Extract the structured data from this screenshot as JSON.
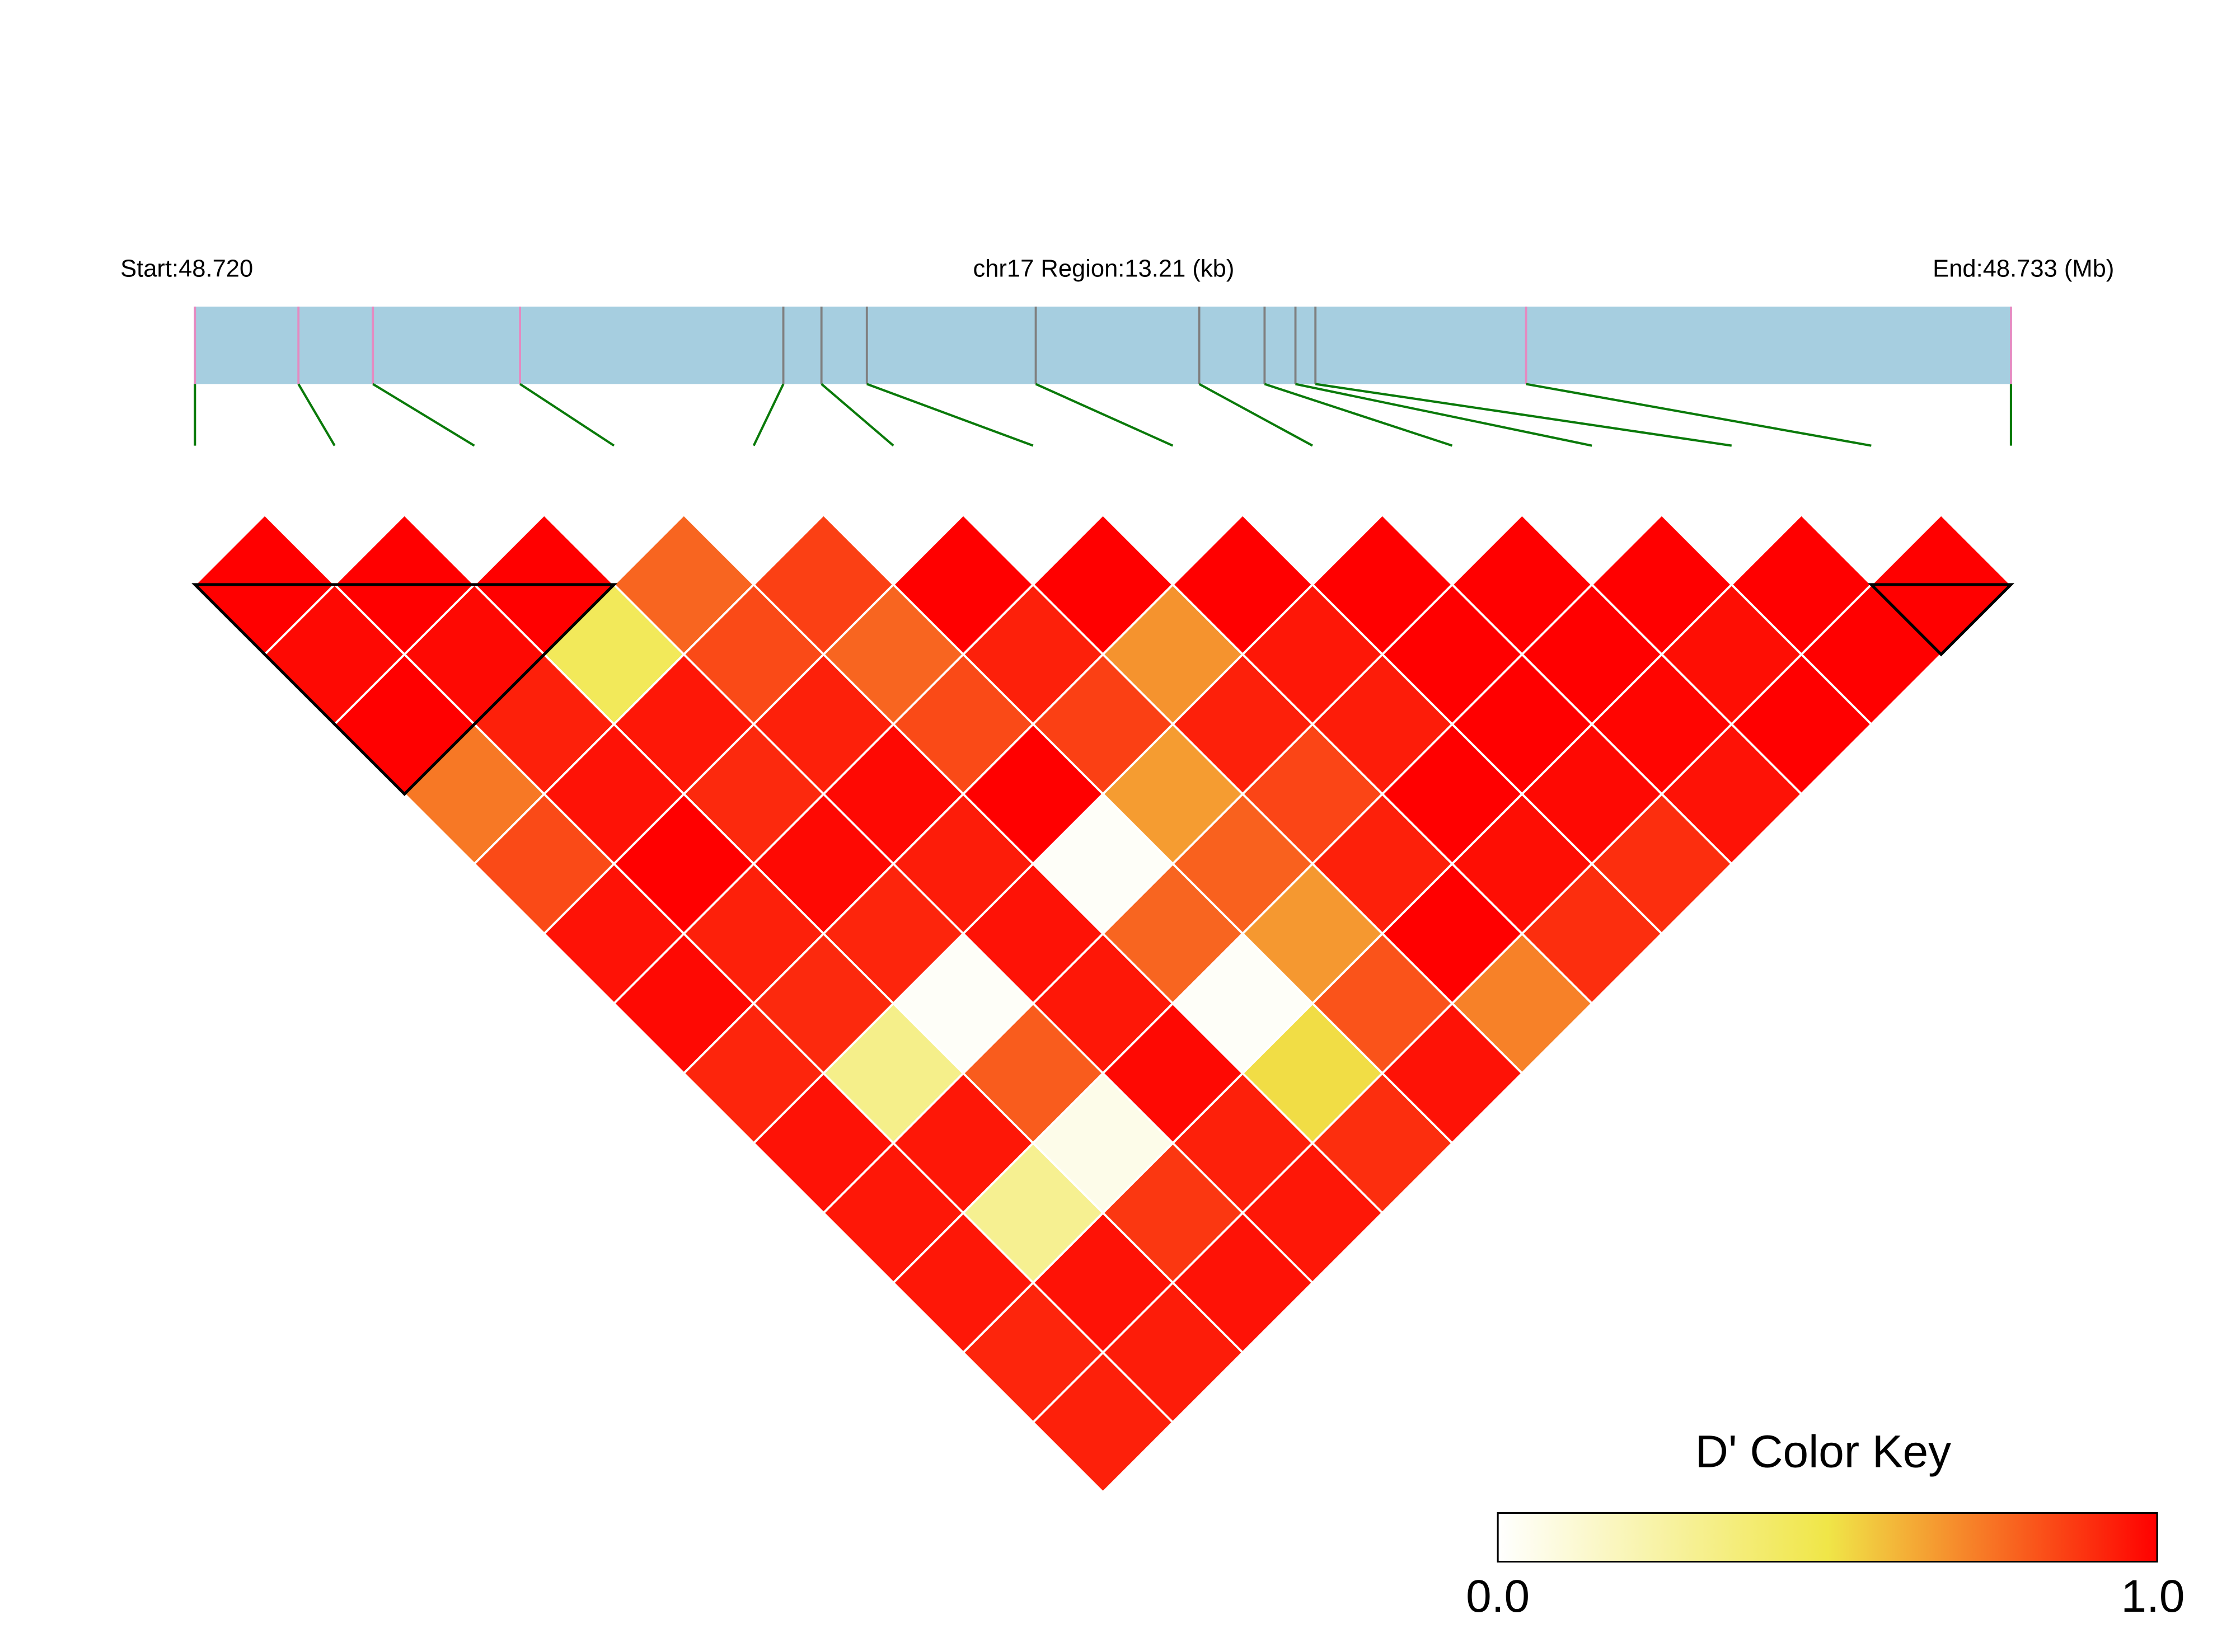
{
  "header": {
    "start_label": "Start:48.720",
    "region_label": "chr17 Region:13.21 (kb)",
    "end_label": "End:48.733 (Mb)"
  },
  "legend": {
    "title": "D' Color Key",
    "min_label": "0.0",
    "max_label": "1.0"
  },
  "colors": {
    "track_fill": "#a6cee0",
    "tick_pink": "#e58ac1",
    "tick_gray": "#7f7f7f",
    "connector": "#0a7a0a",
    "cell_border": "#ffffff",
    "block_outline": "#000000",
    "scale": [
      "#ffffff",
      "#f0e648",
      "#ff0000"
    ]
  },
  "chart_data": {
    "type": "heatmap",
    "title": "D' Color Key",
    "metric": "D'",
    "region": {
      "chromosome": "chr17",
      "start_mb": 48.72,
      "end_mb": 48.733,
      "length_kb": 13.21
    },
    "snp_count": 14,
    "snp_positions_frac": [
      0.0,
      0.057,
      0.098,
      0.179,
      0.324,
      0.345,
      0.37,
      0.463,
      0.553,
      0.589,
      0.606,
      0.617,
      0.733,
      1.0
    ],
    "snp_tick_style": [
      "pink",
      "pink",
      "pink",
      "pink",
      "gray",
      "gray",
      "gray",
      "gray",
      "gray",
      "gray",
      "gray",
      "gray",
      "pink",
      "pink"
    ],
    "color_scale": {
      "min": 0.0,
      "max": 1.0
    },
    "dprime_by_distance": [
      [
        1.0,
        1.0,
        1.0,
        0.78,
        0.86,
        1.0,
        1.0,
        1.0,
        1.0,
        1.0,
        1.0,
        1.0,
        1.0
      ],
      [
        0.98,
        0.98,
        0.45,
        0.84,
        0.78,
        0.93,
        0.68,
        0.95,
        1.0,
        1.0,
        0.97,
        1.0
      ],
      [
        1.0,
        0.93,
        0.95,
        0.93,
        0.84,
        0.86,
        0.93,
        0.94,
        1.0,
        0.99,
        1.0
      ],
      [
        0.74,
        0.96,
        0.91,
        0.98,
        1.0,
        0.66,
        0.85,
        1.0,
        0.98,
        0.96
      ],
      [
        0.84,
        1.0,
        0.98,
        0.94,
        0.02,
        0.79,
        0.93,
        0.97,
        0.9
      ],
      [
        0.96,
        0.93,
        0.92,
        0.96,
        0.78,
        0.67,
        1.0,
        0.9
      ],
      [
        0.98,
        0.91,
        0.02,
        0.95,
        0.02,
        0.82,
        0.72
      ],
      [
        0.92,
        0.32,
        0.8,
        0.98,
        0.52,
        0.96
      ],
      [
        0.96,
        0.95,
        0.06,
        0.93,
        0.9
      ],
      [
        0.95,
        0.3,
        0.88,
        0.95
      ],
      [
        0.95,
        0.96,
        0.96
      ],
      [
        0.92,
        0.94
      ],
      [
        0.93
      ]
    ],
    "ld_blocks": [
      {
        "first_snp": 1,
        "last_snp": 4
      },
      {
        "first_snp": 13,
        "last_snp": 14
      }
    ]
  }
}
